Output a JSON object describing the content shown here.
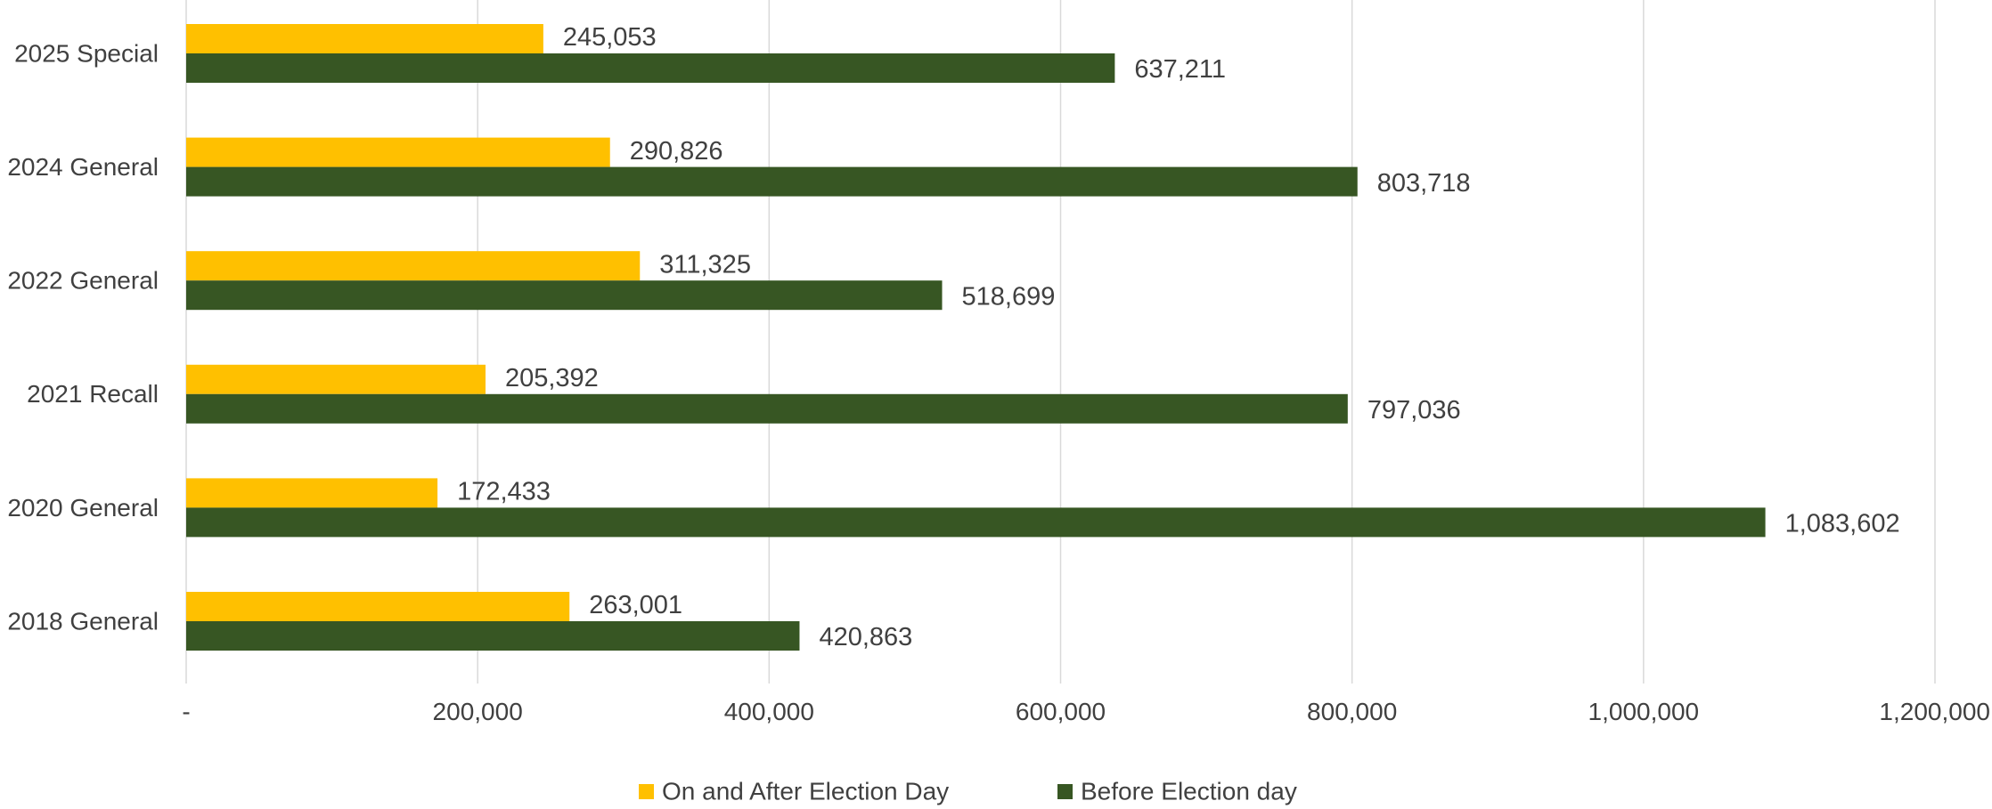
{
  "chart_data": {
    "type": "bar",
    "orientation": "horizontal",
    "categories": [
      "2025 Special",
      "2024 General",
      "2022 General",
      "2021 Recall",
      "2020 General",
      "2018 General"
    ],
    "series": [
      {
        "name": "On and After Election Day",
        "color": "#FFC000",
        "values": [
          245053,
          290826,
          311325,
          205392,
          172433,
          263001
        ],
        "labels": [
          "245,053",
          "290,826",
          "311,325",
          "205,392",
          "172,433",
          "263,001"
        ]
      },
      {
        "name": "Before Election day",
        "color": "#375623",
        "values": [
          637211,
          803718,
          518699,
          797036,
          1083602,
          420863
        ],
        "labels": [
          "637,211",
          "803,718",
          "518,699",
          "797,036",
          "1,083,602",
          "420,863"
        ]
      }
    ],
    "xlim": [
      0,
      1200000
    ],
    "ticks": [
      0,
      200000,
      400000,
      600000,
      800000,
      1000000,
      1200000
    ],
    "tick_labels": [
      "-",
      "200,000",
      "400,000",
      "600,000",
      "800,000",
      "1,000,000",
      "1,200,000"
    ],
    "grid": true,
    "legend_position": "bottom",
    "title": "",
    "xlabel": "",
    "ylabel": ""
  }
}
